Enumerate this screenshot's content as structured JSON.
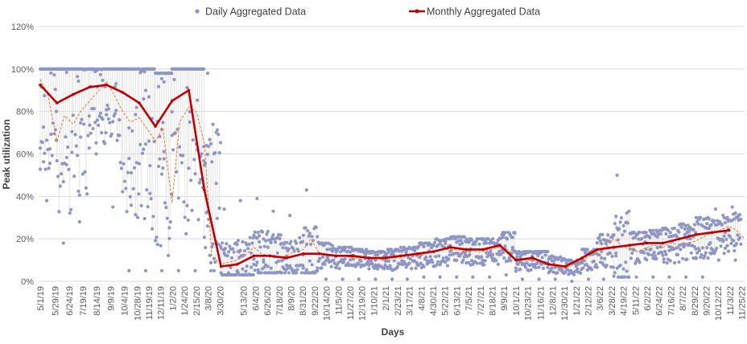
{
  "chart_data": {
    "type": "line",
    "xlabel": "Days",
    "ylabel": "Peak utilization",
    "ylim": [
      0,
      120
    ],
    "y_ticks": [
      "0%",
      "20%",
      "40%",
      "60%",
      "80%",
      "100%",
      "120%"
    ],
    "x_ticks": [
      "5/1/19",
      "5/29/19",
      "6/24/19",
      "7/19/19",
      "8/14/19",
      "9/9/19",
      "10/4/19",
      "10/28/19",
      "11/19/19",
      "12/11/19",
      "1/2/20",
      "1/24/20",
      "2/15/20",
      "3/8/20",
      "3/30/20",
      "5/13/20",
      "6/4/20",
      "6/26/20",
      "7/18/20",
      "8/9/20",
      "8/31/20",
      "9/22/20",
      "10/14/20",
      "11/5/20",
      "11/27/20",
      "12/19/20",
      "1/10/21",
      "2/1/21",
      "2/23/21",
      "3/17/21",
      "4/8/21",
      "4/30/21",
      "5/22/21",
      "6/13/21",
      "7/5/21",
      "7/27/21",
      "8/18/21",
      "9/9/21",
      "10/1/21",
      "10/23/21",
      "11/16/21",
      "12/8/21",
      "12/30/21",
      "1/21/22",
      "2/12/22",
      "3/6/22",
      "3/28/22",
      "4/19/22",
      "5/11/22",
      "6/2/22",
      "6/24/22",
      "7/16/22",
      "8/7/22",
      "8/29/22",
      "9/20/22",
      "10/12/22",
      "11/3/22",
      "11/25/22"
    ],
    "grid": true,
    "legend_position": "top",
    "series": [
      {
        "name": "Daily Aggregated Data",
        "style": "scatter",
        "color": "#8e96c6",
        "x_range": [
          "5/1/19",
          "11/25/22"
        ],
        "note_values_per_month_center": [
          {
            "date": "5/1/19",
            "center": 92,
            "lo": 38,
            "hi": 100
          },
          {
            "date": "6/1/19",
            "center": 84,
            "lo": 18,
            "hi": 100
          },
          {
            "date": "7/1/19",
            "center": 88,
            "lo": 28,
            "hi": 100
          },
          {
            "date": "8/1/19",
            "center": 91,
            "lo": 60,
            "hi": 100
          },
          {
            "date": "9/1/19",
            "center": 92,
            "lo": 35,
            "hi": 100
          },
          {
            "date": "10/1/19",
            "center": 89,
            "lo": 5,
            "hi": 100
          },
          {
            "date": "11/1/19",
            "center": 84,
            "lo": 5,
            "hi": 100
          },
          {
            "date": "12/1/19",
            "center": 73,
            "lo": 5,
            "hi": 98
          },
          {
            "date": "1/1/20",
            "center": 85,
            "lo": 5,
            "hi": 100
          },
          {
            "date": "2/1/20",
            "center": 90,
            "lo": 5,
            "hi": 100
          },
          {
            "date": "3/1/20",
            "center": 43,
            "lo": 5,
            "hi": 98
          },
          {
            "date": "4/1/20",
            "center": 7,
            "lo": 3,
            "hi": 34
          },
          {
            "date": "5/1/20",
            "center": 8,
            "lo": 3,
            "hi": 38
          },
          {
            "date": "6/1/20",
            "center": 12,
            "lo": 4,
            "hi": 39
          },
          {
            "date": "7/1/20",
            "center": 12,
            "lo": 4,
            "hi": 33
          },
          {
            "date": "8/1/20",
            "center": 11,
            "lo": 4,
            "hi": 31
          },
          {
            "date": "9/1/20",
            "center": 13,
            "lo": 4,
            "hi": 43
          },
          {
            "date": "10/1/20",
            "center": 13,
            "lo": 1,
            "hi": 18
          },
          {
            "date": "11/1/20",
            "center": 12,
            "lo": 1,
            "hi": 16
          },
          {
            "date": "12/1/20",
            "center": 12,
            "lo": 1,
            "hi": 15
          },
          {
            "date": "1/1/21",
            "center": 11,
            "lo": 1,
            "hi": 14
          },
          {
            "date": "2/1/21",
            "center": 11,
            "lo": 1,
            "hi": 15
          },
          {
            "date": "3/1/21",
            "center": 12,
            "lo": 1,
            "hi": 16
          },
          {
            "date": "4/1/21",
            "center": 13,
            "lo": 2,
            "hi": 18
          },
          {
            "date": "5/1/21",
            "center": 14,
            "lo": 2,
            "hi": 20
          },
          {
            "date": "6/1/21",
            "center": 16,
            "lo": 2,
            "hi": 21
          },
          {
            "date": "7/1/21",
            "center": 15,
            "lo": 2,
            "hi": 20
          },
          {
            "date": "8/1/21",
            "center": 15,
            "lo": 2,
            "hi": 20
          },
          {
            "date": "9/1/21",
            "center": 17,
            "lo": 3,
            "hi": 23
          },
          {
            "date": "10/1/21",
            "center": 10,
            "lo": 1,
            "hi": 14
          },
          {
            "date": "11/1/21",
            "center": 11,
            "lo": 1,
            "hi": 14
          },
          {
            "date": "12/1/21",
            "center": 8,
            "lo": 1,
            "hi": 12
          },
          {
            "date": "1/1/22",
            "center": 7,
            "lo": 0,
            "hi": 10
          },
          {
            "date": "2/1/22",
            "center": 11,
            "lo": 1,
            "hi": 15
          },
          {
            "date": "3/1/22",
            "center": 15,
            "lo": 1,
            "hi": 22
          },
          {
            "date": "4/1/22",
            "center": 16,
            "lo": 2,
            "hi": 50
          },
          {
            "date": "5/1/22",
            "center": 17,
            "lo": 2,
            "hi": 23
          },
          {
            "date": "6/1/22",
            "center": 18,
            "lo": 2,
            "hi": 24
          },
          {
            "date": "7/1/22",
            "center": 18,
            "lo": 2,
            "hi": 25
          },
          {
            "date": "8/1/22",
            "center": 20,
            "lo": 2,
            "hi": 27
          },
          {
            "date": "9/1/22",
            "center": 22,
            "lo": 2,
            "hi": 30
          },
          {
            "date": "10/1/22",
            "center": 23,
            "lo": 10,
            "hi": 34
          },
          {
            "date": "11/1/22",
            "center": 24,
            "lo": 10,
            "hi": 35
          }
        ]
      },
      {
        "name": "Monthly Aggregated Data",
        "style": "line",
        "color": "#c00000",
        "points": [
          {
            "x": "5/1/19",
            "y": 92.5
          },
          {
            "x": "6/1/19",
            "y": 84
          },
          {
            "x": "7/1/19",
            "y": 88
          },
          {
            "x": "8/1/19",
            "y": 91.5
          },
          {
            "x": "9/1/19",
            "y": 92.5
          },
          {
            "x": "10/1/19",
            "y": 89
          },
          {
            "x": "11/1/19",
            "y": 84
          },
          {
            "x": "12/1/19",
            "y": 73
          },
          {
            "x": "1/1/20",
            "y": 85
          },
          {
            "x": "2/1/20",
            "y": 90
          },
          {
            "x": "3/1/20",
            "y": 43
          },
          {
            "x": "4/1/20",
            "y": 7
          },
          {
            "x": "5/1/20",
            "y": 8
          },
          {
            "x": "6/1/20",
            "y": 12
          },
          {
            "x": "7/1/20",
            "y": 12
          },
          {
            "x": "8/1/20",
            "y": 11
          },
          {
            "x": "9/1/20",
            "y": 13
          },
          {
            "x": "10/1/20",
            "y": 13
          },
          {
            "x": "11/1/20",
            "y": 12
          },
          {
            "x": "12/1/20",
            "y": 12
          },
          {
            "x": "1/1/21",
            "y": 11
          },
          {
            "x": "2/1/21",
            "y": 11
          },
          {
            "x": "3/1/21",
            "y": 12
          },
          {
            "x": "4/1/21",
            "y": 13
          },
          {
            "x": "5/1/21",
            "y": 14
          },
          {
            "x": "6/1/21",
            "y": 16
          },
          {
            "x": "7/1/21",
            "y": 15
          },
          {
            "x": "8/1/21",
            "y": 15
          },
          {
            "x": "9/1/21",
            "y": 17
          },
          {
            "x": "10/1/21",
            "y": 10
          },
          {
            "x": "11/1/21",
            "y": 11
          },
          {
            "x": "12/1/21",
            "y": 8
          },
          {
            "x": "1/1/22",
            "y": 7
          },
          {
            "x": "2/1/22",
            "y": 11
          },
          {
            "x": "3/1/22",
            "y": 15
          },
          {
            "x": "4/1/22",
            "y": 16
          },
          {
            "x": "5/1/22",
            "y": 17
          },
          {
            "x": "6/1/22",
            "y": 18
          },
          {
            "x": "7/1/22",
            "y": 18
          },
          {
            "x": "8/1/22",
            "y": 20
          },
          {
            "x": "9/1/22",
            "y": 22
          },
          {
            "x": "10/1/22",
            "y": 23
          },
          {
            "x": "11/1/22",
            "y": 24
          }
        ]
      },
      {
        "style": "dashed-line",
        "color": "#ed7d31",
        "points": [
          {
            "x": "5/1/19",
            "y": 95
          },
          {
            "x": "5/15/19",
            "y": 88
          },
          {
            "x": "6/1/19",
            "y": 66
          },
          {
            "x": "6/15/19",
            "y": 78
          },
          {
            "x": "7/1/19",
            "y": 74
          },
          {
            "x": "7/15/19",
            "y": 80
          },
          {
            "x": "8/1/19",
            "y": 85
          },
          {
            "x": "8/15/19",
            "y": 89
          },
          {
            "x": "9/1/19",
            "y": 94
          },
          {
            "x": "9/15/19",
            "y": 88
          },
          {
            "x": "10/1/19",
            "y": 80
          },
          {
            "x": "10/15/19",
            "y": 75
          },
          {
            "x": "11/1/19",
            "y": 77
          },
          {
            "x": "11/15/19",
            "y": 72
          },
          {
            "x": "12/1/19",
            "y": 66
          },
          {
            "x": "12/15/19",
            "y": 72
          },
          {
            "x": "1/1/20",
            "y": 37
          },
          {
            "x": "1/15/20",
            "y": 75
          },
          {
            "x": "2/1/20",
            "y": 82
          },
          {
            "x": "2/15/20",
            "y": 80
          },
          {
            "x": "3/1/20",
            "y": 65
          },
          {
            "x": "3/15/20",
            "y": 12
          },
          {
            "x": "4/1/20",
            "y": 8
          },
          {
            "x": "4/15/20",
            "y": 9
          },
          {
            "x": "5/1/20",
            "y": 10
          },
          {
            "x": "5/15/20",
            "y": 12
          },
          {
            "x": "6/1/20",
            "y": 16
          },
          {
            "x": "6/15/20",
            "y": 13
          },
          {
            "x": "7/1/20",
            "y": 12
          },
          {
            "x": "7/15/20",
            "y": 11
          },
          {
            "x": "8/1/20",
            "y": 12
          },
          {
            "x": "8/15/20",
            "y": 14
          },
          {
            "x": "9/1/20",
            "y": 15
          },
          {
            "x": "9/15/20",
            "y": 20
          },
          {
            "x": "10/1/20",
            "y": 13
          },
          {
            "x": "10/15/20",
            "y": 12
          },
          {
            "x": "11/1/20",
            "y": 12
          },
          {
            "x": "11/15/20",
            "y": 12
          },
          {
            "x": "12/1/20",
            "y": 11
          },
          {
            "x": "12/15/20",
            "y": 11
          },
          {
            "x": "1/1/21",
            "y": 11
          },
          {
            "x": "1/15/21",
            "y": 10
          },
          {
            "x": "2/1/21",
            "y": 11
          },
          {
            "x": "2/15/21",
            "y": 11
          },
          {
            "x": "3/1/21",
            "y": 11
          },
          {
            "x": "3/15/21",
            "y": 12
          },
          {
            "x": "4/1/21",
            "y": 12
          },
          {
            "x": "4/15/21",
            "y": 13
          },
          {
            "x": "5/1/21",
            "y": 14
          },
          {
            "x": "5/15/21",
            "y": 15
          },
          {
            "x": "6/1/21",
            "y": 15
          },
          {
            "x": "6/15/21",
            "y": 15
          },
          {
            "x": "7/1/21",
            "y": 14
          },
          {
            "x": "7/15/21",
            "y": 14
          },
          {
            "x": "8/1/21",
            "y": 14
          },
          {
            "x": "8/15/21",
            "y": 15
          },
          {
            "x": "9/1/21",
            "y": 16
          },
          {
            "x": "9/15/21",
            "y": 15
          },
          {
            "x": "10/1/21",
            "y": 10
          },
          {
            "x": "10/15/21",
            "y": 10
          },
          {
            "x": "11/1/21",
            "y": 10
          },
          {
            "x": "11/15/21",
            "y": 9
          },
          {
            "x": "12/1/21",
            "y": 8
          },
          {
            "x": "12/15/21",
            "y": 7
          },
          {
            "x": "1/1/22",
            "y": 6
          },
          {
            "x": "1/15/22",
            "y": 8
          },
          {
            "x": "2/1/22",
            "y": 10
          },
          {
            "x": "2/15/22",
            "y": 12
          },
          {
            "x": "3/1/22",
            "y": 14
          },
          {
            "x": "3/15/22",
            "y": 16
          },
          {
            "x": "4/1/22",
            "y": 20
          },
          {
            "x": "4/15/22",
            "y": 17
          },
          {
            "x": "5/1/22",
            "y": 15
          },
          {
            "x": "5/15/22",
            "y": 14
          },
          {
            "x": "6/1/22",
            "y": 16
          },
          {
            "x": "6/15/22",
            "y": 17
          },
          {
            "x": "7/1/22",
            "y": 16
          },
          {
            "x": "7/15/22",
            "y": 18
          },
          {
            "x": "8/1/22",
            "y": 17
          },
          {
            "x": "8/15/22",
            "y": 18
          },
          {
            "x": "9/1/22",
            "y": 19
          },
          {
            "x": "9/15/22",
            "y": 21
          },
          {
            "x": "10/1/22",
            "y": 23
          },
          {
            "x": "10/15/22",
            "y": 24
          },
          {
            "x": "11/1/22",
            "y": 26
          },
          {
            "x": "11/15/22",
            "y": 24
          },
          {
            "x": "11/30/22",
            "y": 20
          }
        ]
      }
    ]
  }
}
